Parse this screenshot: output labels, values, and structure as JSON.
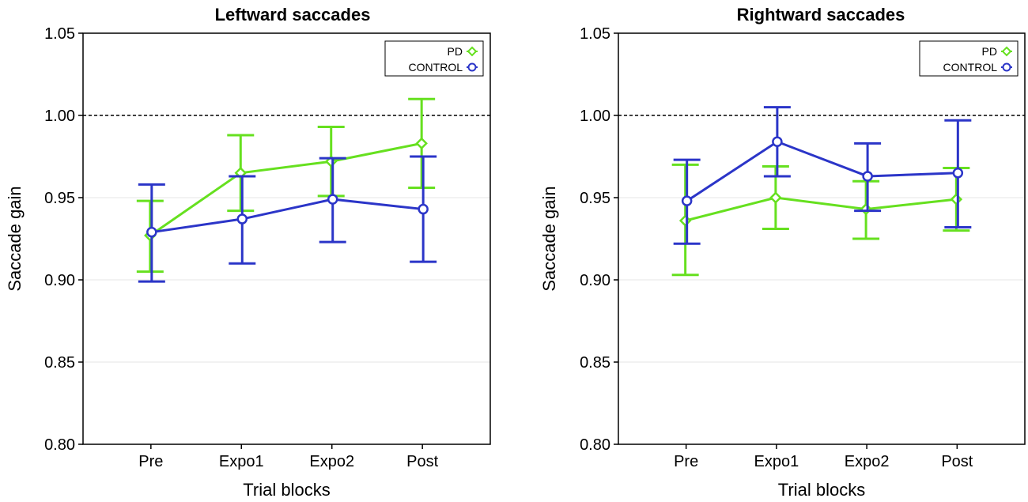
{
  "chart_data": [
    {
      "type": "line",
      "title": "Leftward saccades",
      "xlabel": "Trial blocks",
      "ylabel": "Saccade gain",
      "categories": [
        "Pre",
        "Expo1",
        "Expo2",
        "Post"
      ],
      "ylim": [
        0.8,
        1.05
      ],
      "yticks": [
        0.8,
        0.85,
        0.9,
        0.95,
        1.0,
        1.05
      ],
      "ytick_labels": [
        "0.80",
        "0.85",
        "0.90",
        "0.95",
        "1.00",
        "1.05"
      ],
      "reference_line": 1.0,
      "legend_position": "top-right",
      "series": [
        {
          "name": "PD",
          "color": "#66e01f",
          "marker": "diamond",
          "values": [
            0.927,
            0.965,
            0.972,
            0.983
          ],
          "lower": [
            0.905,
            0.942,
            0.951,
            0.956
          ],
          "upper": [
            0.948,
            0.988,
            0.993,
            1.01
          ]
        },
        {
          "name": "CONTROL",
          "color": "#2b35c8",
          "marker": "circle",
          "values": [
            0.929,
            0.937,
            0.949,
            0.943
          ],
          "lower": [
            0.899,
            0.91,
            0.923,
            0.911
          ],
          "upper": [
            0.958,
            0.963,
            0.974,
            0.975
          ]
        }
      ]
    },
    {
      "type": "line",
      "title": "Rightward saccades",
      "xlabel": "Trial blocks",
      "ylabel": "Saccade gain",
      "categories": [
        "Pre",
        "Expo1",
        "Expo2",
        "Post"
      ],
      "ylim": [
        0.8,
        1.05
      ],
      "yticks": [
        0.8,
        0.85,
        0.9,
        0.95,
        1.0,
        1.05
      ],
      "ytick_labels": [
        "0.80",
        "0.85",
        "0.90",
        "0.95",
        "1.00",
        "1.05"
      ],
      "reference_line": 1.0,
      "legend_position": "top-right",
      "series": [
        {
          "name": "PD",
          "color": "#66e01f",
          "marker": "diamond",
          "values": [
            0.936,
            0.95,
            0.943,
            0.949
          ],
          "lower": [
            0.903,
            0.931,
            0.925,
            0.93
          ],
          "upper": [
            0.97,
            0.969,
            0.96,
            0.968
          ]
        },
        {
          "name": "CONTROL",
          "color": "#2b35c8",
          "marker": "circle",
          "values": [
            0.948,
            0.984,
            0.963,
            0.965
          ],
          "lower": [
            0.922,
            0.963,
            0.942,
            0.932
          ],
          "upper": [
            0.973,
            1.005,
            0.983,
            0.997
          ]
        }
      ]
    }
  ]
}
